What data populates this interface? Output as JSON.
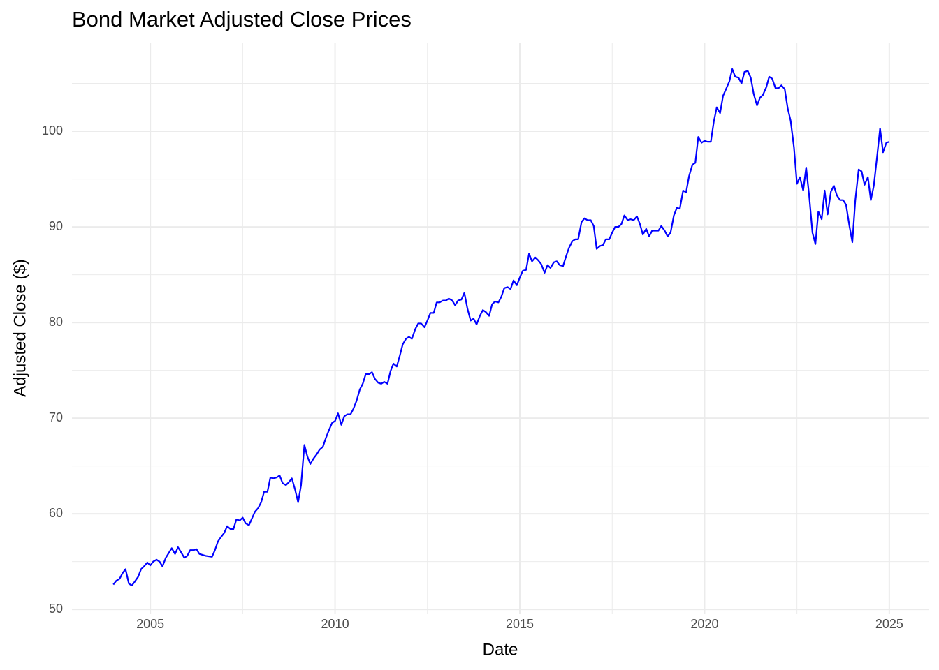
{
  "chart_data": {
    "type": "line",
    "title": "Bond Market Adjusted Close Prices",
    "x_label": "Date",
    "y_label": "Adjusted Close ($)",
    "xlim": [
      2002.88,
      2026.08
    ],
    "ylim": [
      49.5,
      109.2
    ],
    "xticks": [
      2005,
      2010,
      2015,
      2020,
      2025
    ],
    "yticks": [
      50,
      60,
      70,
      80,
      90,
      100
    ],
    "x_minor_ticks": [
      2007.5,
      2012.5,
      2017.5,
      2022.5
    ],
    "y_minor_ticks": [
      55,
      65,
      75,
      85,
      95,
      105
    ],
    "grid": true,
    "x": [
      2004,
      2004.08,
      2004.17,
      2004.25,
      2004.33,
      2004.42,
      2004.5,
      2004.58,
      2004.67,
      2004.75,
      2004.83,
      2004.92,
      2005,
      2005.08,
      2005.17,
      2005.25,
      2005.33,
      2005.42,
      2005.5,
      2005.58,
      2005.67,
      2005.75,
      2005.83,
      2005.92,
      2006,
      2006.08,
      2006.17,
      2006.25,
      2006.33,
      2006.5,
      2006.67,
      2006.75,
      2006.83,
      2006.92,
      2007,
      2007.08,
      2007.17,
      2007.25,
      2007.33,
      2007.42,
      2007.5,
      2007.58,
      2007.67,
      2007.75,
      2007.83,
      2007.92,
      2008,
      2008.08,
      2008.17,
      2008.25,
      2008.33,
      2008.42,
      2008.5,
      2008.58,
      2008.67,
      2008.75,
      2008.83,
      2008.92,
      2009,
      2009.08,
      2009.17,
      2009.25,
      2009.33,
      2009.42,
      2009.5,
      2009.58,
      2009.67,
      2009.75,
      2009.83,
      2009.92,
      2010,
      2010.08,
      2010.17,
      2010.25,
      2010.33,
      2010.42,
      2010.5,
      2010.58,
      2010.67,
      2010.75,
      2010.83,
      2010.92,
      2011,
      2011.08,
      2011.17,
      2011.25,
      2011.33,
      2011.42,
      2011.5,
      2011.58,
      2011.67,
      2011.75,
      2011.83,
      2011.92,
      2012,
      2012.08,
      2012.17,
      2012.25,
      2012.33,
      2012.42,
      2012.5,
      2012.58,
      2012.67,
      2012.75,
      2012.83,
      2012.92,
      2013,
      2013.08,
      2013.17,
      2013.25,
      2013.33,
      2013.42,
      2013.5,
      2013.58,
      2013.67,
      2013.75,
      2013.83,
      2013.92,
      2014,
      2014.08,
      2014.17,
      2014.25,
      2014.33,
      2014.42,
      2014.5,
      2014.58,
      2014.67,
      2014.75,
      2014.83,
      2014.92,
      2015,
      2015.08,
      2015.17,
      2015.25,
      2015.33,
      2015.42,
      2015.5,
      2015.58,
      2015.67,
      2015.75,
      2015.83,
      2015.92,
      2016,
      2016.08,
      2016.17,
      2016.25,
      2016.33,
      2016.42,
      2016.5,
      2016.58,
      2016.67,
      2016.75,
      2016.83,
      2016.92,
      2017,
      2017.08,
      2017.17,
      2017.25,
      2017.33,
      2017.42,
      2017.5,
      2017.58,
      2017.67,
      2017.75,
      2017.83,
      2017.92,
      2018,
      2018.08,
      2018.17,
      2018.25,
      2018.33,
      2018.42,
      2018.5,
      2018.58,
      2018.67,
      2018.75,
      2018.83,
      2018.92,
      2019,
      2019.08,
      2019.17,
      2019.25,
      2019.33,
      2019.42,
      2019.5,
      2019.58,
      2019.67,
      2019.75,
      2019.83,
      2019.92,
      2020,
      2020.08,
      2020.17,
      2020.25,
      2020.33,
      2020.42,
      2020.5,
      2020.58,
      2020.67,
      2020.75,
      2020.83,
      2020.92,
      2021,
      2021.08,
      2021.17,
      2021.25,
      2021.33,
      2021.42,
      2021.5,
      2021.58,
      2021.67,
      2021.75,
      2021.83,
      2021.92,
      2022,
      2022.08,
      2022.17,
      2022.25,
      2022.33,
      2022.42,
      2022.5,
      2022.58,
      2022.67,
      2022.75,
      2022.83,
      2022.92,
      2023,
      2023.08,
      2023.17,
      2023.25,
      2023.33,
      2023.42,
      2023.5,
      2023.58,
      2023.67,
      2023.75,
      2023.83,
      2023.92,
      2024,
      2024.08,
      2024.17,
      2024.25,
      2024.33,
      2024.42,
      2024.5,
      2024.58,
      2024.67,
      2024.75,
      2024.83,
      2024.92,
      2025
    ],
    "series": [
      {
        "color": "#0000ff",
        "values": [
          52.6,
          53.0,
          53.2,
          53.8,
          54.2,
          52.7,
          52.5,
          52.9,
          53.4,
          54.2,
          54.5,
          54.9,
          54.6,
          55.0,
          55.2,
          55.0,
          54.5,
          55.4,
          55.9,
          56.4,
          55.8,
          56.5,
          56.0,
          55.4,
          55.6,
          56.2,
          56.2,
          56.3,
          55.8,
          55.6,
          55.5,
          56.2,
          57.1,
          57.6,
          58.0,
          58.7,
          58.4,
          58.4,
          59.4,
          59.3,
          59.6,
          59.0,
          58.8,
          59.5,
          60.2,
          60.6,
          61.2,
          62.3,
          62.3,
          63.8,
          63.7,
          63.8,
          64.0,
          63.2,
          63.0,
          63.3,
          63.7,
          62.5,
          61.2,
          63.0,
          67.2,
          66.0,
          65.2,
          65.8,
          66.2,
          66.7,
          67.0,
          67.9,
          68.7,
          69.5,
          69.7,
          70.5,
          69.3,
          70.2,
          70.4,
          70.4,
          71.0,
          71.8,
          73.0,
          73.6,
          74.6,
          74.6,
          74.8,
          74.1,
          73.7,
          73.6,
          73.8,
          73.6,
          74.9,
          75.7,
          75.4,
          76.5,
          77.7,
          78.3,
          78.5,
          78.3,
          79.3,
          79.9,
          79.9,
          79.5,
          80.2,
          81.0,
          81.0,
          82.1,
          82.1,
          82.3,
          82.3,
          82.5,
          82.3,
          81.8,
          82.3,
          82.4,
          83.1,
          81.5,
          80.2,
          80.4,
          79.8,
          80.7,
          81.3,
          81.1,
          80.7,
          81.9,
          82.2,
          82.1,
          82.7,
          83.6,
          83.7,
          83.5,
          84.4,
          83.9,
          84.7,
          85.4,
          85.5,
          87.2,
          86.4,
          86.8,
          86.5,
          86.1,
          85.2,
          86.0,
          85.7,
          86.3,
          86.4,
          86.0,
          85.9,
          86.9,
          87.8,
          88.5,
          88.7,
          88.7,
          90.5,
          90.9,
          90.7,
          90.7,
          90.1,
          87.7,
          88.0,
          88.1,
          88.7,
          88.7,
          89.4,
          90.0,
          90.0,
          90.3,
          91.2,
          90.7,
          90.8,
          90.7,
          91.1,
          90.3,
          89.2,
          89.8,
          89.0,
          89.6,
          89.6,
          89.6,
          90.1,
          89.6,
          89.0,
          89.4,
          91.2,
          92.0,
          91.9,
          93.8,
          93.6,
          95.3,
          96.5,
          96.7,
          99.4,
          98.8,
          99.0,
          98.9,
          98.9,
          101.0,
          102.5,
          101.9,
          103.7,
          104.4,
          105.2,
          106.5,
          105.7,
          105.6,
          105.0,
          106.2,
          106.3,
          105.6,
          103.9,
          102.7,
          103.5,
          103.8,
          104.6,
          105.7,
          105.5,
          104.5,
          104.5,
          104.8,
          104.4,
          102.4,
          101.1,
          98.3,
          94.5,
          95.2,
          93.8,
          96.2,
          93.3,
          89.4,
          88.2,
          91.6,
          90.8,
          93.8,
          91.3,
          93.7,
          94.3,
          93.3,
          92.8,
          92.8,
          92.3,
          90.1,
          88.4,
          92.8,
          96.0,
          95.8,
          94.4,
          95.2,
          92.8,
          94.3,
          97.4,
          100.3,
          97.8,
          98.8,
          98.9
        ]
      }
    ]
  }
}
